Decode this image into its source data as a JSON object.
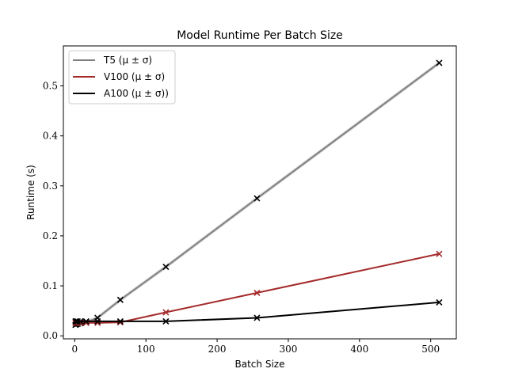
{
  "chart_data": {
    "type": "line",
    "title": "Model Runtime Per Batch Size",
    "xlabel": "Batch Size",
    "ylabel": "Runtime (s)",
    "xlim": [
      -16,
      536
    ],
    "ylim": [
      -0.006,
      0.58
    ],
    "xticks": [
      0,
      100,
      200,
      300,
      400,
      500
    ],
    "yticks": [
      0.0,
      0.1,
      0.2,
      0.3,
      0.4,
      0.5
    ],
    "ytick_labels": [
      "0.0",
      "0.1",
      "0.2",
      "0.3",
      "0.4",
      "0.5"
    ],
    "grid": false,
    "legend_position": "top-left",
    "x": [
      1,
      2,
      4,
      8,
      16,
      32,
      64,
      128,
      256,
      512
    ],
    "series": [
      {
        "name": "T5 (μ ± σ)",
        "color": "#808080",
        "marker_color": "#000000",
        "values": [
          0.022,
          0.023,
          0.024,
          0.025,
          0.027,
          0.036,
          0.072,
          0.138,
          0.275,
          0.546
        ],
        "band": 0.004
      },
      {
        "name": "V100 (μ ± σ)",
        "color": "#a52a2a",
        "marker_color": "#a52a2a",
        "values": [
          0.026,
          0.026,
          0.026,
          0.026,
          0.026,
          0.026,
          0.027,
          0.047,
          0.086,
          0.164
        ],
        "band": 0.001
      },
      {
        "name": "A100 (μ ± σ))",
        "color": "#000000",
        "marker_color": "#000000",
        "values": [
          0.029,
          0.029,
          0.029,
          0.029,
          0.029,
          0.029,
          0.029,
          0.029,
          0.036,
          0.067
        ],
        "band": 0.001
      }
    ]
  }
}
